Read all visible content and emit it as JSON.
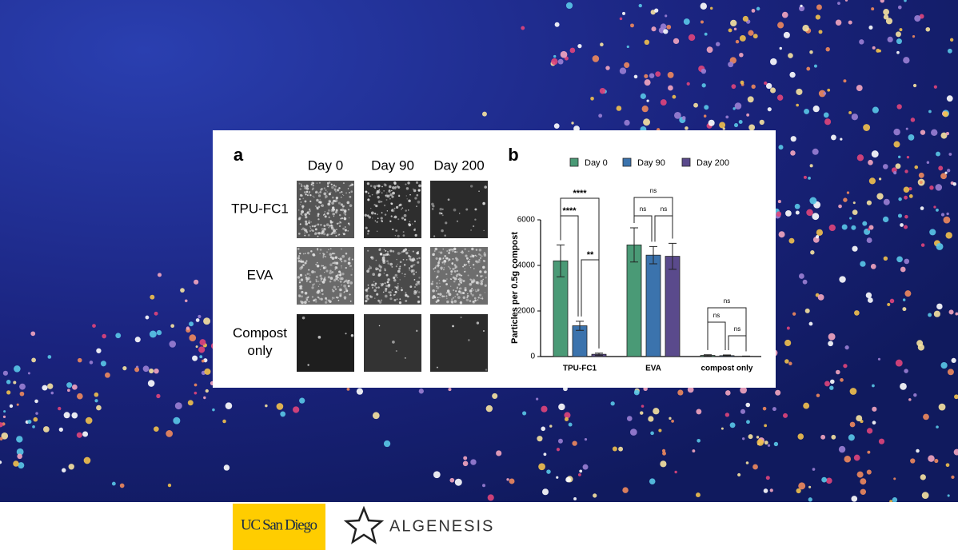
{
  "panel_a": {
    "label": "a",
    "columns": [
      "Day 0",
      "Day 90",
      "Day 200"
    ],
    "rows": [
      "TPU-FC1",
      "EVA",
      "Compost only"
    ]
  },
  "chart_data": {
    "type": "bar",
    "label": "b",
    "y_label": "Particles per 0.5g compost",
    "categories": [
      "TPU-FC1",
      "EVA",
      "compost only"
    ],
    "series": [
      {
        "name": "Day 0",
        "color": "#4a9a76",
        "values": [
          4200,
          4900,
          50
        ],
        "errors": [
          700,
          750,
          30
        ]
      },
      {
        "name": "Day 90",
        "color": "#3b73ad",
        "values": [
          1350,
          4450,
          40
        ],
        "errors": [
          200,
          380,
          30
        ]
      },
      {
        "name": "Day 200",
        "color": "#5a4a8c",
        "values": [
          100,
          4400,
          10
        ],
        "errors": [
          50,
          570,
          10
        ]
      }
    ],
    "ylim": [
      0,
      6000
    ],
    "yticks": [
      0,
      2000,
      4000,
      6000
    ],
    "annotations": [
      "****",
      "****",
      "**",
      "ns",
      "ns",
      "ns",
      "ns",
      "ns",
      "ns"
    ]
  },
  "logos": {
    "ucsd": "UC San Diego",
    "algenesis": "ALGENESIS"
  }
}
